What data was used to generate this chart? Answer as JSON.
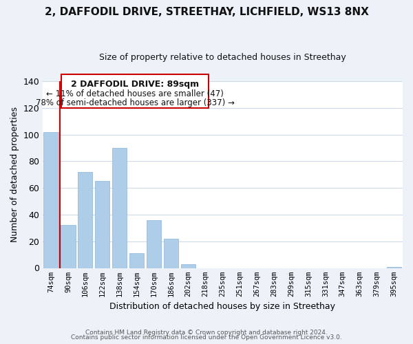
{
  "title": "2, DAFFODIL DRIVE, STREETHAY, LICHFIELD, WS13 8NX",
  "subtitle": "Size of property relative to detached houses in Streethay",
  "xlabel": "Distribution of detached houses by size in Streethay",
  "ylabel": "Number of detached properties",
  "bar_labels": [
    "74sqm",
    "90sqm",
    "106sqm",
    "122sqm",
    "138sqm",
    "154sqm",
    "170sqm",
    "186sqm",
    "202sqm",
    "218sqm",
    "235sqm",
    "251sqm",
    "267sqm",
    "283sqm",
    "299sqm",
    "315sqm",
    "331sqm",
    "347sqm",
    "363sqm",
    "379sqm",
    "395sqm"
  ],
  "bar_heights": [
    102,
    32,
    72,
    65,
    90,
    11,
    36,
    22,
    3,
    0,
    0,
    0,
    0,
    0,
    0,
    0,
    0,
    0,
    0,
    0,
    1
  ],
  "bar_color": "#aecde8",
  "marker_line_color": "#cc0000",
  "ylim": [
    0,
    140
  ],
  "yticks": [
    0,
    20,
    40,
    60,
    80,
    100,
    120,
    140
  ],
  "annotation_title": "2 DAFFODIL DRIVE: 89sqm",
  "annotation_line1": "← 11% of detached houses are smaller (47)",
  "annotation_line2": "78% of semi-detached houses are larger (337) →",
  "footer_line1": "Contains HM Land Registry data © Crown copyright and database right 2024.",
  "footer_line2": "Contains public sector information licensed under the Open Government Licence v3.0.",
  "background_color": "#edf2f9",
  "plot_bg_color": "#ffffff",
  "grid_color": "#cddaea"
}
